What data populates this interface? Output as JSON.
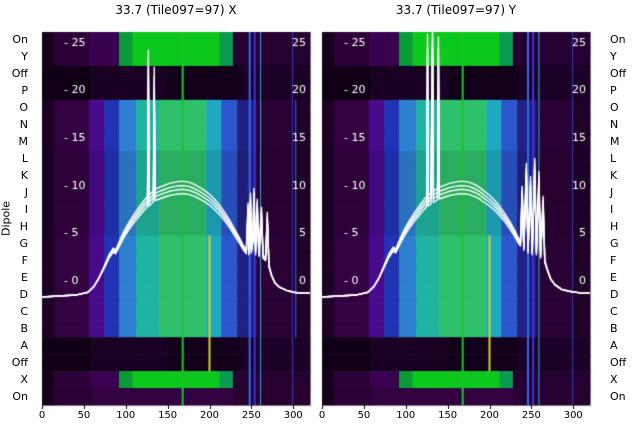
{
  "titles": {
    "left": "33.7 (Tile097=97) X",
    "right": "33.7 (Tile097=97) Y"
  },
  "ylabel": "Dipole",
  "dipole_labels": [
    "On",
    "Y",
    "Off",
    "P",
    "O",
    "N",
    "M",
    "L",
    "K",
    "J",
    "I",
    "H",
    "G",
    "F",
    "E",
    "D",
    "C",
    "B",
    "A",
    "Off",
    "X",
    "On"
  ],
  "x_tick_values": [
    0,
    50,
    100,
    150,
    200,
    250,
    300
  ],
  "x_tick_labels": [
    "0",
    "50",
    "100",
    "150",
    "200",
    "250",
    "300"
  ],
  "gain_ticks": [
    {
      "value": 25,
      "left": "- 25",
      "right": "25"
    },
    {
      "value": 20,
      "left": "- 20",
      "right": "20"
    },
    {
      "value": 15,
      "left": "- 15",
      "right": "15"
    },
    {
      "value": 10,
      "left": "- 10",
      "right": "10"
    },
    {
      "value": 5,
      "left": "- 5",
      "right": "5"
    },
    {
      "value": 0,
      "left": "- 0",
      "right": "0"
    }
  ],
  "colors": {
    "curve": "#ffffff",
    "tick_text": "#000000",
    "inner_tick_text": "#ffffff",
    "background": "#ffffff"
  },
  "line_factors": [
    1.0,
    0.96,
    0.915,
    1.045
  ],
  "palettes": {
    "band": [
      [
        0,
        14,
        "#1c0124"
      ],
      [
        14,
        56,
        "#33013f"
      ],
      [
        56,
        74,
        "#4a0a8c"
      ],
      [
        74,
        92,
        "#2033b4"
      ],
      [
        92,
        112,
        "#2f7fd0"
      ],
      [
        112,
        140,
        "#1fb4a2"
      ],
      [
        140,
        196,
        "#2fc06b"
      ],
      [
        196,
        214,
        "#1fa8c0"
      ],
      [
        214,
        233,
        "#2b57cc"
      ],
      [
        233,
        256,
        "#232083"
      ],
      [
        256,
        298,
        "#2a0134"
      ],
      [
        298,
        320,
        "#200128"
      ]
    ],
    "band2": [
      [
        0,
        14,
        "#1a0122"
      ],
      [
        14,
        56,
        "#2e013a"
      ],
      [
        56,
        74,
        "#42087e"
      ],
      [
        74,
        92,
        "#1d2da3"
      ],
      [
        92,
        112,
        "#2a72bd"
      ],
      [
        112,
        140,
        "#1ba390"
      ],
      [
        140,
        196,
        "#2aad60"
      ],
      [
        196,
        214,
        "#1c98ae"
      ],
      [
        214,
        233,
        "#264eb8"
      ],
      [
        233,
        256,
        "#1f1d76"
      ],
      [
        256,
        298,
        "#27012f"
      ],
      [
        298,
        320,
        "#1e0126"
      ]
    ],
    "bright": [
      [
        0,
        14,
        "#16011c"
      ],
      [
        14,
        56,
        "#2c0138"
      ],
      [
        56,
        92,
        "#3a0150"
      ],
      [
        92,
        108,
        "#0a9a3a"
      ],
      [
        108,
        212,
        "#0cc81c"
      ],
      [
        212,
        228,
        "#0a9a50"
      ],
      [
        228,
        320,
        "#240130"
      ]
    ],
    "dark": [
      [
        0,
        60,
        "#100016"
      ],
      [
        60,
        150,
        "#1a0124"
      ],
      [
        150,
        235,
        "#12001a"
      ],
      [
        235,
        320,
        "#1c0126"
      ]
    ],
    "edge": [
      [
        0,
        14,
        "#16011c"
      ],
      [
        14,
        60,
        "#2a0134"
      ],
      [
        60,
        230,
        "#320140"
      ],
      [
        230,
        320,
        "#260130"
      ]
    ]
  },
  "chart_data": [
    {
      "type": "heatmap+line",
      "panel": "X",
      "title": "33.7 (Tile097=97) X",
      "x_range": [
        0,
        320
      ],
      "gain_range": [
        0,
        25
      ],
      "rows": [
        "On",
        "Y",
        "Off",
        "P",
        "O",
        "N",
        "M",
        "L",
        "K",
        "J",
        "I",
        "H",
        "G",
        "F",
        "E",
        "D",
        "C",
        "B",
        "A",
        "Off",
        "X",
        "On"
      ],
      "row_styles": [
        "bright",
        "bright",
        "dark",
        "dark",
        "band",
        "band",
        "band",
        "band2",
        "band2",
        "band2",
        "band2",
        "band2",
        "band",
        "band",
        "band",
        "band",
        "band",
        "band",
        "dark",
        "dark",
        "bright",
        "edge"
      ],
      "stripes": [
        {
          "x": 168,
          "w": 2,
          "color": "#19c42c",
          "rows": "all"
        },
        {
          "x": 200,
          "w": 2,
          "color": "#cdd61a",
          "rows": [
            12,
            19
          ]
        },
        {
          "x": 248,
          "w": 2,
          "color": "#2f6df2",
          "rows": "all"
        },
        {
          "x": 254,
          "w": 2,
          "color": "#3c30da",
          "rows": "all"
        },
        {
          "x": 261,
          "w": 1,
          "color": "#30b0e2",
          "rows": "all"
        },
        {
          "x": 299,
          "w": 1,
          "color": "#3c30da",
          "rows": "all"
        },
        {
          "x": 303,
          "w": 1,
          "color": "#2f6df2",
          "rows": [
            4,
            17
          ]
        }
      ],
      "bandpass_series": [
        [
          0,
          -1.7
        ],
        [
          20,
          -1.6
        ],
        [
          40,
          -1.5
        ],
        [
          55,
          -1.2
        ],
        [
          62,
          -0.6
        ],
        [
          68,
          0.3
        ],
        [
          74,
          1.4
        ],
        [
          80,
          2.6
        ],
        [
          85,
          3.3
        ],
        [
          88,
          3.1
        ],
        [
          92,
          3.9
        ],
        [
          98,
          5.0
        ],
        [
          104,
          5.9
        ],
        [
          110,
          6.7
        ],
        [
          116,
          7.4
        ],
        [
          122,
          8.1
        ],
        [
          126,
          8.5
        ],
        [
          127,
          23.2
        ],
        [
          128,
          8.6
        ],
        [
          131,
          8.9
        ],
        [
          133,
          9.1
        ],
        [
          134,
          21.5
        ],
        [
          135,
          9.2
        ],
        [
          140,
          9.4
        ],
        [
          146,
          9.6
        ],
        [
          152,
          9.8
        ],
        [
          158,
          9.9
        ],
        [
          164,
          10.0
        ],
        [
          170,
          10.0
        ],
        [
          176,
          9.9
        ],
        [
          182,
          9.7
        ],
        [
          188,
          9.4
        ],
        [
          194,
          9.1
        ],
        [
          200,
          8.7
        ],
        [
          206,
          8.2
        ],
        [
          212,
          7.6
        ],
        [
          218,
          6.9
        ],
        [
          224,
          6.1
        ],
        [
          230,
          5.2
        ],
        [
          236,
          4.3
        ],
        [
          240,
          3.6
        ],
        [
          244,
          3.1
        ],
        [
          246,
          7.8
        ],
        [
          247,
          3.0
        ],
        [
          249,
          8.8
        ],
        [
          250,
          3.2
        ],
        [
          252,
          4.5
        ],
        [
          253,
          9.3
        ],
        [
          255,
          3.0
        ],
        [
          257,
          8.2
        ],
        [
          259,
          2.8
        ],
        [
          262,
          7.4
        ],
        [
          264,
          2.6
        ],
        [
          267,
          2.3
        ],
        [
          269,
          6.9
        ],
        [
          271,
          1.6
        ],
        [
          274,
          0.6
        ],
        [
          278,
          -0.2
        ],
        [
          284,
          -0.7
        ],
        [
          292,
          -1.0
        ],
        [
          300,
          -1.2
        ],
        [
          310,
          -1.3
        ],
        [
          320,
          -1.3
        ]
      ]
    },
    {
      "type": "heatmap+line",
      "panel": "Y",
      "title": "33.7 (Tile097=97) Y",
      "x_range": [
        0,
        320
      ],
      "gain_range": [
        0,
        25
      ],
      "rows": [
        "On",
        "Y",
        "Off",
        "P",
        "O",
        "N",
        "M",
        "L",
        "K",
        "J",
        "I",
        "H",
        "G",
        "F",
        "E",
        "D",
        "C",
        "B",
        "A",
        "Off",
        "X",
        "On"
      ],
      "row_styles": [
        "bright",
        "bright",
        "dark",
        "dark",
        "band",
        "band",
        "band",
        "band2",
        "band2",
        "band2",
        "band2",
        "band2",
        "band",
        "band",
        "band",
        "band",
        "band",
        "band",
        "dark",
        "dark",
        "bright",
        "edge"
      ],
      "stripes": [
        {
          "x": 168,
          "w": 2,
          "color": "#19c42c",
          "rows": "all"
        },
        {
          "x": 200,
          "w": 2,
          "color": "#cdd61a",
          "rows": [
            12,
            19
          ]
        },
        {
          "x": 246,
          "w": 2,
          "color": "#2f6df2",
          "rows": "all"
        },
        {
          "x": 252,
          "w": 2,
          "color": "#3c30da",
          "rows": "all"
        },
        {
          "x": 259,
          "w": 1,
          "color": "#30b0e2",
          "rows": "all"
        },
        {
          "x": 299,
          "w": 1,
          "color": "#3c30da",
          "rows": "all"
        }
      ],
      "bandpass_series": [
        [
          0,
          -1.7
        ],
        [
          20,
          -1.6
        ],
        [
          40,
          -1.5
        ],
        [
          55,
          -1.2
        ],
        [
          62,
          -0.6
        ],
        [
          68,
          0.3
        ],
        [
          74,
          1.5
        ],
        [
          80,
          2.7
        ],
        [
          85,
          3.4
        ],
        [
          88,
          3.2
        ],
        [
          92,
          4.0
        ],
        [
          98,
          5.1
        ],
        [
          104,
          6.0
        ],
        [
          110,
          6.8
        ],
        [
          116,
          7.5
        ],
        [
          122,
          8.2
        ],
        [
          125,
          8.5
        ],
        [
          126,
          24.8
        ],
        [
          127,
          8.6
        ],
        [
          130,
          8.8
        ],
        [
          132,
          25.8
        ],
        [
          133,
          9.0
        ],
        [
          136,
          9.2
        ],
        [
          138,
          9.3
        ],
        [
          139,
          24.5
        ],
        [
          140,
          9.4
        ],
        [
          146,
          9.6
        ],
        [
          152,
          9.8
        ],
        [
          158,
          9.9
        ],
        [
          164,
          10.0
        ],
        [
          170,
          10.0
        ],
        [
          176,
          9.9
        ],
        [
          182,
          9.7
        ],
        [
          188,
          9.4
        ],
        [
          194,
          9.0
        ],
        [
          200,
          8.6
        ],
        [
          206,
          8.1
        ],
        [
          212,
          7.5
        ],
        [
          218,
          6.8
        ],
        [
          224,
          6.0
        ],
        [
          230,
          5.1
        ],
        [
          234,
          4.4
        ],
        [
          237,
          4.0
        ],
        [
          239,
          9.5
        ],
        [
          241,
          3.5
        ],
        [
          244,
          11.8
        ],
        [
          246,
          3.2
        ],
        [
          249,
          10.5
        ],
        [
          251,
          3.0
        ],
        [
          254,
          12.3
        ],
        [
          256,
          3.0
        ],
        [
          259,
          11.0
        ],
        [
          261,
          2.6
        ],
        [
          264,
          8.5
        ],
        [
          266,
          2.1
        ],
        [
          269,
          1.2
        ],
        [
          273,
          0.2
        ],
        [
          278,
          -0.4
        ],
        [
          286,
          -0.9
        ],
        [
          295,
          -1.1
        ],
        [
          310,
          -1.3
        ],
        [
          320,
          -1.3
        ]
      ]
    }
  ]
}
